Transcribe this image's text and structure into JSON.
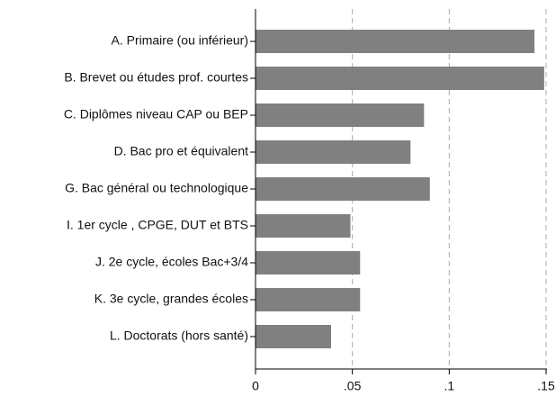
{
  "chart_data": {
    "type": "barh",
    "categories": [
      "A. Primaire (ou inférieur)",
      "B. Brevet ou études prof. courtes",
      "C. Diplômes niveau CAP ou BEP",
      "D. Bac pro et équivalent",
      "G. Bac général ou technologique",
      "I. 1er cycle , CPGE, DUT et BTS",
      "J. 2e cycle, écoles Bac+3/4",
      "K. 3e cycle, grandes écoles",
      "L. Doctorats (hors santé)"
    ],
    "values": [
      0.144,
      0.149,
      0.087,
      0.08,
      0.09,
      0.049,
      0.054,
      0.054,
      0.039
    ],
    "color": "#808080",
    "xlim": [
      0,
      0.15
    ],
    "xticks": [
      0,
      {
        "value": 0.05,
        "label": ".05"
      },
      {
        "value": 0.1,
        "label": ".1"
      },
      {
        "value": 0.15,
        "label": ".15"
      }
    ],
    "grid": true
  }
}
